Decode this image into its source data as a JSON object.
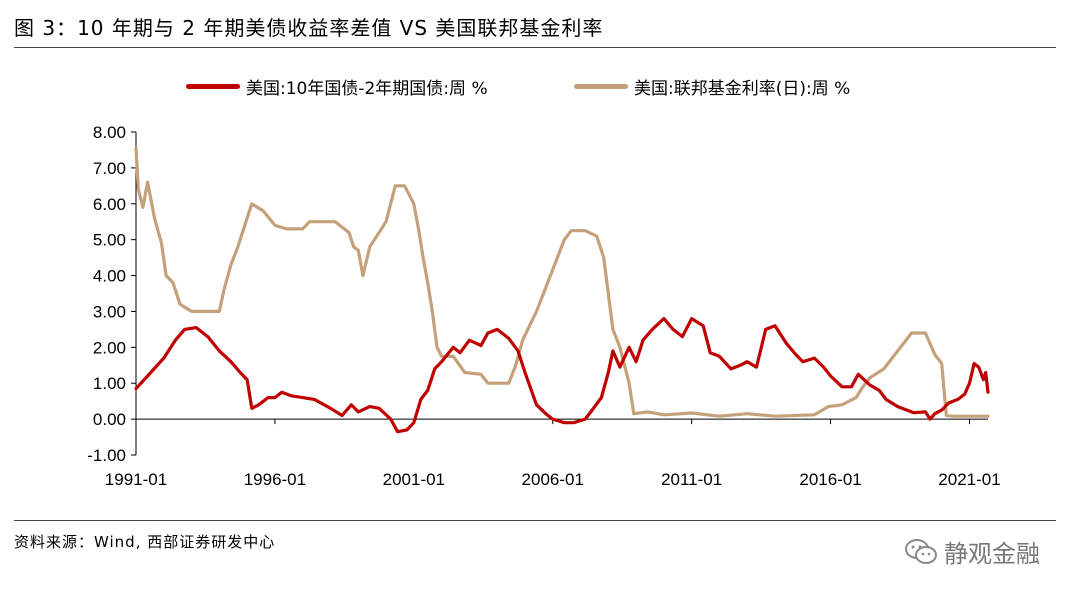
{
  "figure": {
    "title": "图 3：10 年期与 2 年期美债收益率差值 VS 美国联邦基金利率",
    "source": "资料来源：Wind, 西部证券研发中心",
    "watermark": "静观金融",
    "watermark_icon": "wechat-icon"
  },
  "chart_data": {
    "type": "line",
    "title": "",
    "xlabel": "",
    "ylabel": "",
    "ylim": [
      -1.0,
      8.0
    ],
    "yticks": [
      "8.00",
      "7.00",
      "6.00",
      "5.00",
      "4.00",
      "3.00",
      "2.00",
      "1.00",
      "0.00",
      "-1.00"
    ],
    "xticks": [
      "1991-01",
      "1996-01",
      "2001-01",
      "2006-01",
      "2011-01",
      "2016-01",
      "2021-01"
    ],
    "xrange": [
      "1991-01",
      "2021-09"
    ],
    "grid": false,
    "legend_position": "top",
    "series": [
      {
        "name": "美国:10年国债-2年期国债:周 %",
        "color": "#c00000",
        "points": [
          [
            "1991-01",
            0.85
          ],
          [
            "1991-06",
            1.2
          ],
          [
            "1992-01",
            1.7
          ],
          [
            "1992-06",
            2.2
          ],
          [
            "1992-10",
            2.5
          ],
          [
            "1993-03",
            2.55
          ],
          [
            "1993-08",
            2.3
          ],
          [
            "1994-01",
            1.9
          ],
          [
            "1994-06",
            1.6
          ],
          [
            "1994-10",
            1.3
          ],
          [
            "1995-01",
            1.1
          ],
          [
            "1995-03",
            0.3
          ],
          [
            "1995-06",
            0.4
          ],
          [
            "1995-10",
            0.6
          ],
          [
            "1996-01",
            0.6
          ],
          [
            "1996-04",
            0.75
          ],
          [
            "1996-08",
            0.65
          ],
          [
            "1997-01",
            0.6
          ],
          [
            "1997-06",
            0.55
          ],
          [
            "1998-01",
            0.3
          ],
          [
            "1998-06",
            0.1
          ],
          [
            "1998-10",
            0.4
          ],
          [
            "1999-01",
            0.2
          ],
          [
            "1999-06",
            0.35
          ],
          [
            "1999-10",
            0.3
          ],
          [
            "2000-03",
            0.0
          ],
          [
            "2000-06",
            -0.35
          ],
          [
            "2000-10",
            -0.3
          ],
          [
            "2001-01",
            -0.1
          ],
          [
            "2001-04",
            0.55
          ],
          [
            "2001-07",
            0.8
          ],
          [
            "2001-10",
            1.4
          ],
          [
            "2002-01",
            1.6
          ],
          [
            "2002-06",
            2.0
          ],
          [
            "2002-09",
            1.85
          ],
          [
            "2003-01",
            2.2
          ],
          [
            "2003-06",
            2.05
          ],
          [
            "2003-09",
            2.4
          ],
          [
            "2004-01",
            2.5
          ],
          [
            "2004-06",
            2.25
          ],
          [
            "2004-10",
            1.9
          ],
          [
            "2005-01",
            1.3
          ],
          [
            "2005-06",
            0.4
          ],
          [
            "2005-10",
            0.15
          ],
          [
            "2006-01",
            0.0
          ],
          [
            "2006-06",
            -0.1
          ],
          [
            "2006-10",
            -0.1
          ],
          [
            "2007-03",
            0.0
          ],
          [
            "2007-06",
            0.25
          ],
          [
            "2007-10",
            0.6
          ],
          [
            "2008-01",
            1.3
          ],
          [
            "2008-03",
            1.9
          ],
          [
            "2008-06",
            1.45
          ],
          [
            "2008-10",
            2.0
          ],
          [
            "2009-01",
            1.6
          ],
          [
            "2009-04",
            2.2
          ],
          [
            "2009-08",
            2.5
          ],
          [
            "2010-01",
            2.8
          ],
          [
            "2010-05",
            2.5
          ],
          [
            "2010-09",
            2.3
          ],
          [
            "2011-01",
            2.8
          ],
          [
            "2011-06",
            2.6
          ],
          [
            "2011-09",
            1.85
          ],
          [
            "2012-01",
            1.75
          ],
          [
            "2012-06",
            1.4
          ],
          [
            "2012-10",
            1.5
          ],
          [
            "2013-01",
            1.6
          ],
          [
            "2013-05",
            1.45
          ],
          [
            "2013-09",
            2.5
          ],
          [
            "2014-01",
            2.6
          ],
          [
            "2014-06",
            2.1
          ],
          [
            "2014-10",
            1.8
          ],
          [
            "2015-01",
            1.6
          ],
          [
            "2015-06",
            1.7
          ],
          [
            "2015-10",
            1.45
          ],
          [
            "2016-01",
            1.2
          ],
          [
            "2016-06",
            0.9
          ],
          [
            "2016-10",
            0.9
          ],
          [
            "2017-01",
            1.25
          ],
          [
            "2017-06",
            0.95
          ],
          [
            "2017-10",
            0.8
          ],
          [
            "2018-01",
            0.55
          ],
          [
            "2018-06",
            0.35
          ],
          [
            "2018-10",
            0.25
          ],
          [
            "2019-01",
            0.18
          ],
          [
            "2019-06",
            0.2
          ],
          [
            "2019-08",
            0.0
          ],
          [
            "2019-10",
            0.15
          ],
          [
            "2020-01",
            0.25
          ],
          [
            "2020-04",
            0.45
          ],
          [
            "2020-08",
            0.55
          ],
          [
            "2020-11",
            0.7
          ],
          [
            "2021-01",
            1.0
          ],
          [
            "2021-03",
            1.55
          ],
          [
            "2021-05",
            1.45
          ],
          [
            "2021-07",
            1.1
          ],
          [
            "2021-08",
            1.3
          ],
          [
            "2021-09",
            0.75
          ]
        ]
      },
      {
        "name": "美国:联邦基金利率(日):周 %",
        "color": "#c4a17a",
        "points": [
          [
            "1991-01",
            7.55
          ],
          [
            "1991-02",
            6.4
          ],
          [
            "1991-04",
            5.9
          ],
          [
            "1991-06",
            6.6
          ],
          [
            "1991-09",
            5.6
          ],
          [
            "1991-12",
            4.9
          ],
          [
            "1992-02",
            4.0
          ],
          [
            "1992-05",
            3.8
          ],
          [
            "1992-08",
            3.2
          ],
          [
            "1993-01",
            3.0
          ],
          [
            "1993-06",
            3.0
          ],
          [
            "1994-01",
            3.0
          ],
          [
            "1994-03",
            3.6
          ],
          [
            "1994-06",
            4.3
          ],
          [
            "1994-09",
            4.8
          ],
          [
            "1995-01",
            5.6
          ],
          [
            "1995-03",
            6.0
          ],
          [
            "1995-08",
            5.8
          ],
          [
            "1996-01",
            5.4
          ],
          [
            "1996-06",
            5.3
          ],
          [
            "1997-01",
            5.3
          ],
          [
            "1997-04",
            5.5
          ],
          [
            "1997-10",
            5.5
          ],
          [
            "1998-03",
            5.5
          ],
          [
            "1998-09",
            5.2
          ],
          [
            "1998-11",
            4.8
          ],
          [
            "1999-01",
            4.7
          ],
          [
            "1999-03",
            4.0
          ],
          [
            "1999-06",
            4.8
          ],
          [
            "1999-10",
            5.2
          ],
          [
            "2000-01",
            5.5
          ],
          [
            "2000-05",
            6.5
          ],
          [
            "2000-09",
            6.5
          ],
          [
            "2001-01",
            6.0
          ],
          [
            "2001-03",
            5.3
          ],
          [
            "2001-05",
            4.5
          ],
          [
            "2001-07",
            3.8
          ],
          [
            "2001-09",
            3.0
          ],
          [
            "2001-11",
            2.0
          ],
          [
            "2002-01",
            1.75
          ],
          [
            "2002-06",
            1.75
          ],
          [
            "2002-11",
            1.3
          ],
          [
            "2003-06",
            1.25
          ],
          [
            "2003-09",
            1.0
          ],
          [
            "2004-06",
            1.0
          ],
          [
            "2004-09",
            1.5
          ],
          [
            "2004-12",
            2.2
          ],
          [
            "2005-06",
            3.0
          ],
          [
            "2005-12",
            4.0
          ],
          [
            "2006-06",
            5.0
          ],
          [
            "2006-09",
            5.25
          ],
          [
            "2007-03",
            5.25
          ],
          [
            "2007-08",
            5.1
          ],
          [
            "2007-11",
            4.5
          ],
          [
            "2008-01",
            3.5
          ],
          [
            "2008-03",
            2.5
          ],
          [
            "2008-06",
            2.0
          ],
          [
            "2008-10",
            1.0
          ],
          [
            "2008-12",
            0.15
          ],
          [
            "2009-06",
            0.2
          ],
          [
            "2010-01",
            0.12
          ],
          [
            "2011-01",
            0.17
          ],
          [
            "2012-01",
            0.08
          ],
          [
            "2013-01",
            0.15
          ],
          [
            "2014-01",
            0.08
          ],
          [
            "2015-06",
            0.12
          ],
          [
            "2015-12",
            0.35
          ],
          [
            "2016-06",
            0.4
          ],
          [
            "2016-12",
            0.6
          ],
          [
            "2017-03",
            0.9
          ],
          [
            "2017-06",
            1.15
          ],
          [
            "2017-12",
            1.4
          ],
          [
            "2018-03",
            1.65
          ],
          [
            "2018-06",
            1.9
          ],
          [
            "2018-09",
            2.15
          ],
          [
            "2018-12",
            2.4
          ],
          [
            "2019-06",
            2.4
          ],
          [
            "2019-08",
            2.1
          ],
          [
            "2019-10",
            1.8
          ],
          [
            "2020-01",
            1.55
          ],
          [
            "2020-03",
            0.1
          ],
          [
            "2020-06",
            0.08
          ],
          [
            "2021-01",
            0.08
          ],
          [
            "2021-09",
            0.08
          ]
        ]
      }
    ]
  }
}
